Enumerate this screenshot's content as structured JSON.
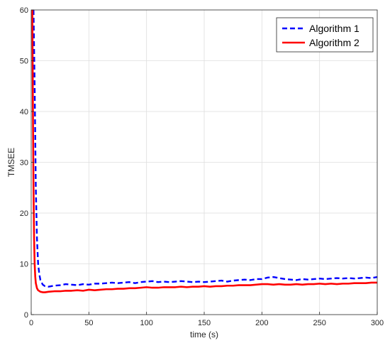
{
  "chart_data": {
    "type": "line",
    "title": "",
    "xlabel": "time (s)",
    "ylabel": "TMSEE",
    "xlim": [
      0,
      300
    ],
    "ylim": [
      0,
      60
    ],
    "xticks": [
      0,
      50,
      100,
      150,
      200,
      250,
      300
    ],
    "yticks": [
      0,
      10,
      20,
      30,
      40,
      50,
      60
    ],
    "grid": true,
    "legend_position": "top-right",
    "series": [
      {
        "name": "Algorithm 1",
        "color": "#0000ff",
        "style": "dashed",
        "x": [
          2,
          3,
          4,
          5,
          6,
          7,
          8,
          10,
          12,
          15,
          20,
          25,
          30,
          35,
          40,
          45,
          50,
          55,
          60,
          65,
          70,
          75,
          80,
          85,
          90,
          95,
          100,
          105,
          110,
          115,
          120,
          125,
          130,
          135,
          140,
          145,
          150,
          155,
          160,
          165,
          170,
          175,
          180,
          185,
          190,
          195,
          200,
          205,
          210,
          215,
          220,
          225,
          230,
          235,
          240,
          245,
          250,
          255,
          260,
          265,
          270,
          275,
          280,
          285,
          290,
          295,
          300
        ],
        "y": [
          60,
          45,
          25,
          15,
          10,
          8,
          6.8,
          5.9,
          5.6,
          5.5,
          5.7,
          5.8,
          6.0,
          5.9,
          5.8,
          6.0,
          5.9,
          6.1,
          6.1,
          6.2,
          6.3,
          6.2,
          6.3,
          6.4,
          6.2,
          6.4,
          6.5,
          6.6,
          6.4,
          6.5,
          6.4,
          6.5,
          6.6,
          6.5,
          6.4,
          6.5,
          6.4,
          6.5,
          6.6,
          6.7,
          6.5,
          6.7,
          6.8,
          6.9,
          6.8,
          7.0,
          7.0,
          7.3,
          7.4,
          7.2,
          7.0,
          6.9,
          6.8,
          7.0,
          6.9,
          7.0,
          7.1,
          7.0,
          7.1,
          7.2,
          7.1,
          7.2,
          7.1,
          7.2,
          7.3,
          7.2,
          7.4
        ]
      },
      {
        "name": "Algorithm 2",
        "color": "#ff0000",
        "style": "solid",
        "x": [
          1,
          1.5,
          2,
          2.5,
          3,
          3.5,
          4,
          5,
          6,
          8,
          10,
          12,
          15,
          20,
          25,
          30,
          35,
          40,
          45,
          50,
          55,
          60,
          65,
          70,
          75,
          80,
          85,
          90,
          95,
          100,
          105,
          110,
          115,
          120,
          125,
          130,
          135,
          140,
          145,
          150,
          155,
          160,
          165,
          170,
          175,
          180,
          185,
          190,
          195,
          200,
          205,
          210,
          215,
          220,
          225,
          230,
          235,
          240,
          245,
          250,
          255,
          260,
          265,
          270,
          275,
          280,
          285,
          290,
          295,
          300
        ],
        "y": [
          60,
          40,
          25,
          15,
          10,
          7.5,
          6.2,
          5.2,
          4.8,
          4.5,
          4.4,
          4.4,
          4.5,
          4.6,
          4.6,
          4.7,
          4.7,
          4.8,
          4.7,
          4.9,
          4.8,
          4.9,
          5.0,
          5.0,
          5.1,
          5.1,
          5.2,
          5.2,
          5.3,
          5.4,
          5.3,
          5.3,
          5.4,
          5.4,
          5.4,
          5.5,
          5.4,
          5.5,
          5.5,
          5.6,
          5.5,
          5.6,
          5.6,
          5.7,
          5.7,
          5.8,
          5.8,
          5.8,
          5.9,
          6.0,
          6.0,
          5.9,
          6.0,
          5.9,
          5.9,
          6.0,
          5.9,
          6.0,
          6.0,
          6.1,
          6.0,
          6.1,
          6.0,
          6.1,
          6.1,
          6.2,
          6.2,
          6.2,
          6.3,
          6.3
        ]
      }
    ]
  }
}
